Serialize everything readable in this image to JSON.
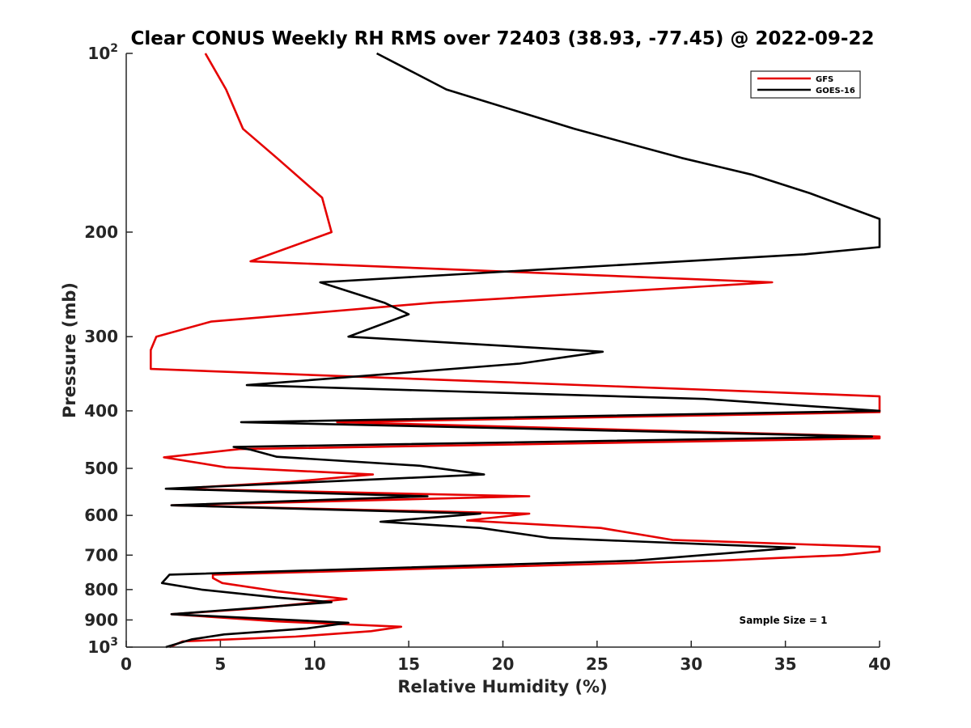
{
  "chart_data": {
    "type": "line",
    "title": "Clear CONUS Weekly RH RMS over 72403 (38.93, -77.45) @ 2022-09-22",
    "xlabel": "Relative Humidity (%)",
    "ylabel": "Pressure (mb)",
    "xlim": [
      0,
      40
    ],
    "ylim": [
      100,
      1000
    ],
    "y_scale": "log",
    "y_reversed": true,
    "grid": false,
    "legend_position": "top-right",
    "x_ticks": [
      0,
      5,
      10,
      15,
      20,
      25,
      30,
      35,
      40
    ],
    "x_tick_labels": [
      "0",
      "5",
      "10",
      "15",
      "20",
      "25",
      "30",
      "35",
      "40"
    ],
    "y_ticks": [
      100,
      200,
      300,
      400,
      500,
      600,
      700,
      800,
      900,
      1000
    ],
    "y_tick_labels": [
      {
        "base": "10",
        "exp": "2"
      },
      {
        "base": "200",
        "exp": ""
      },
      {
        "base": "300",
        "exp": ""
      },
      {
        "base": "400",
        "exp": ""
      },
      {
        "base": "500",
        "exp": ""
      },
      {
        "base": "600",
        "exp": ""
      },
      {
        "base": "700",
        "exp": ""
      },
      {
        "base": "800",
        "exp": ""
      },
      {
        "base": "900",
        "exp": ""
      },
      {
        "base": "10",
        "exp": "3"
      }
    ],
    "annotation": "Sample Size = 1",
    "series": [
      {
        "name": "GFS",
        "color": "#e50000",
        "points": [
          [
            4.2,
            100
          ],
          [
            5.3,
            115
          ],
          [
            6.2,
            134
          ],
          [
            8.0,
            150
          ],
          [
            10.4,
            175
          ],
          [
            10.9,
            200
          ],
          [
            6.6,
            224
          ],
          [
            34.3,
            243
          ],
          [
            16.3,
            263
          ],
          [
            4.5,
            283
          ],
          [
            1.6,
            300
          ],
          [
            1.3,
            316
          ],
          [
            1.3,
            340
          ],
          [
            40.0,
            378
          ],
          [
            40.0,
            402
          ],
          [
            11.2,
            418
          ],
          [
            40.0,
            442
          ],
          [
            40.0,
            445
          ],
          [
            6.0,
            464
          ],
          [
            2.0,
            479
          ],
          [
            5.3,
            498
          ],
          [
            13.1,
            512
          ],
          [
            8.7,
            527
          ],
          [
            2.6,
            541
          ],
          [
            21.4,
            557
          ],
          [
            2.4,
            577
          ],
          [
            21.4,
            596
          ],
          [
            18.1,
            612
          ],
          [
            25.2,
            630
          ],
          [
            29.0,
            660
          ],
          [
            40.0,
            678
          ],
          [
            40.0,
            690
          ],
          [
            38.0,
            700
          ],
          [
            31.5,
            715
          ],
          [
            4.6,
            755
          ],
          [
            4.6,
            765
          ],
          [
            5.1,
            780
          ],
          [
            8.0,
            805
          ],
          [
            11.7,
            830
          ],
          [
            7.0,
            860
          ],
          [
            2.4,
            880
          ],
          [
            8.0,
            905
          ],
          [
            14.6,
            924
          ],
          [
            13.0,
            940
          ],
          [
            9.0,
            960
          ],
          [
            3.0,
            978
          ],
          [
            2.3,
            1000
          ]
        ]
      },
      {
        "name": "GOES-16",
        "color": "#000000",
        "points": [
          [
            13.3,
            100
          ],
          [
            17.0,
            115
          ],
          [
            23.8,
            134
          ],
          [
            29.5,
            150
          ],
          [
            33.2,
            160
          ],
          [
            36.3,
            172
          ],
          [
            40.0,
            190
          ],
          [
            40.0,
            212
          ],
          [
            36.0,
            218
          ],
          [
            10.3,
            243
          ],
          [
            13.7,
            263
          ],
          [
            15.0,
            275
          ],
          [
            11.8,
            300
          ],
          [
            25.3,
            318
          ],
          [
            20.9,
            333
          ],
          [
            6.4,
            362
          ],
          [
            30.7,
            382
          ],
          [
            40.0,
            400
          ],
          [
            6.1,
            418
          ],
          [
            39.6,
            442
          ],
          [
            5.7,
            460
          ],
          [
            6.6,
            465
          ],
          [
            8.0,
            478
          ],
          [
            15.6,
            495
          ],
          [
            19.0,
            512
          ],
          [
            2.1,
            541
          ],
          [
            16.0,
            557
          ],
          [
            2.4,
            577
          ],
          [
            18.8,
            596
          ],
          [
            13.5,
            615
          ],
          [
            18.8,
            630
          ],
          [
            22.5,
            655
          ],
          [
            35.5,
            680
          ],
          [
            27.0,
            715
          ],
          [
            2.3,
            755
          ],
          [
            1.9,
            780
          ],
          [
            4.0,
            800
          ],
          [
            8.0,
            825
          ],
          [
            10.9,
            840
          ],
          [
            2.4,
            880
          ],
          [
            11.8,
            910
          ],
          [
            9.6,
            930
          ],
          [
            5.2,
            952
          ],
          [
            3.5,
            970
          ],
          [
            2.1,
            1000
          ]
        ]
      }
    ]
  }
}
